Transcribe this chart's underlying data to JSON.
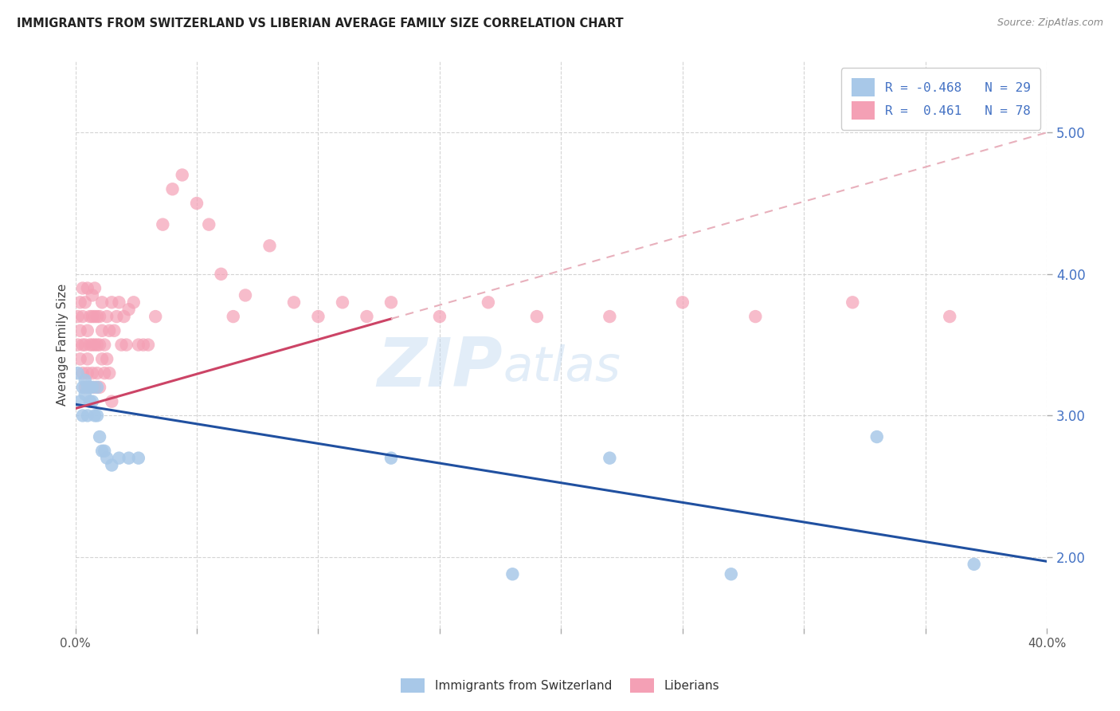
{
  "title": "IMMIGRANTS FROM SWITZERLAND VS LIBERIAN AVERAGE FAMILY SIZE CORRELATION CHART",
  "source": "Source: ZipAtlas.com",
  "ylabel": "Average Family Size",
  "xlim": [
    0.0,
    0.4
  ],
  "ylim": [
    1.5,
    5.5
  ],
  "yticks": [
    2.0,
    3.0,
    4.0,
    5.0
  ],
  "xtick_vals": [
    0.0,
    0.05,
    0.1,
    0.15,
    0.2,
    0.25,
    0.3,
    0.35,
    0.4
  ],
  "xtick_labels": [
    "0.0%",
    "",
    "",
    "",
    "",
    "",
    "",
    "",
    "40.0%"
  ],
  "watermark_zip": "ZIP",
  "watermark_atlas": "atlas",
  "r_swiss": "-0.468",
  "n_swiss": "29",
  "r_liberian": "0.461",
  "n_liberian": "78",
  "color_swiss": "#a8c8e8",
  "color_liberian": "#f4a0b5",
  "color_swiss_line": "#2050a0",
  "color_liberian_solid": "#cc4466",
  "color_liberian_dash": "#e8b0bc",
  "swiss_x": [
    0.001,
    0.002,
    0.003,
    0.003,
    0.004,
    0.004,
    0.005,
    0.005,
    0.006,
    0.006,
    0.007,
    0.007,
    0.008,
    0.009,
    0.009,
    0.01,
    0.011,
    0.012,
    0.013,
    0.015,
    0.018,
    0.022,
    0.026,
    0.13,
    0.18,
    0.22,
    0.27,
    0.33,
    0.37
  ],
  "swiss_y": [
    3.3,
    3.1,
    3.2,
    3.0,
    3.15,
    3.25,
    3.2,
    3.0,
    3.2,
    3.1,
    3.1,
    3.2,
    3.0,
    3.0,
    3.2,
    2.85,
    2.75,
    2.75,
    2.7,
    2.65,
    2.7,
    2.7,
    2.7,
    2.7,
    1.88,
    2.7,
    1.88,
    2.85,
    1.95
  ],
  "liberian_x": [
    0.001,
    0.001,
    0.002,
    0.002,
    0.002,
    0.003,
    0.003,
    0.003,
    0.003,
    0.004,
    0.004,
    0.004,
    0.005,
    0.005,
    0.005,
    0.005,
    0.006,
    0.006,
    0.006,
    0.007,
    0.007,
    0.007,
    0.007,
    0.008,
    0.008,
    0.008,
    0.008,
    0.009,
    0.009,
    0.009,
    0.01,
    0.01,
    0.01,
    0.011,
    0.011,
    0.011,
    0.012,
    0.012,
    0.013,
    0.013,
    0.014,
    0.014,
    0.015,
    0.015,
    0.016,
    0.017,
    0.018,
    0.019,
    0.02,
    0.021,
    0.022,
    0.024,
    0.026,
    0.028,
    0.03,
    0.033,
    0.036,
    0.04,
    0.044,
    0.05,
    0.055,
    0.06,
    0.065,
    0.07,
    0.08,
    0.09,
    0.1,
    0.11,
    0.12,
    0.13,
    0.15,
    0.17,
    0.19,
    0.22,
    0.25,
    0.28,
    0.32,
    0.36
  ],
  "liberian_y": [
    3.5,
    3.7,
    3.4,
    3.6,
    3.8,
    3.3,
    3.5,
    3.7,
    3.9,
    3.2,
    3.5,
    3.8,
    3.3,
    3.6,
    3.9,
    3.4,
    3.2,
    3.5,
    3.7,
    3.3,
    3.5,
    3.7,
    3.85,
    3.2,
    3.5,
    3.7,
    3.9,
    3.3,
    3.5,
    3.7,
    3.2,
    3.5,
    3.7,
    3.4,
    3.6,
    3.8,
    3.3,
    3.5,
    3.4,
    3.7,
    3.3,
    3.6,
    3.1,
    3.8,
    3.6,
    3.7,
    3.8,
    3.5,
    3.7,
    3.5,
    3.75,
    3.8,
    3.5,
    3.5,
    3.5,
    3.7,
    4.35,
    4.6,
    4.7,
    4.5,
    4.35,
    4.0,
    3.7,
    3.85,
    4.2,
    3.8,
    3.7,
    3.8,
    3.7,
    3.8,
    3.7,
    3.8,
    3.7,
    3.7,
    3.8,
    3.7,
    3.8,
    3.7
  ]
}
